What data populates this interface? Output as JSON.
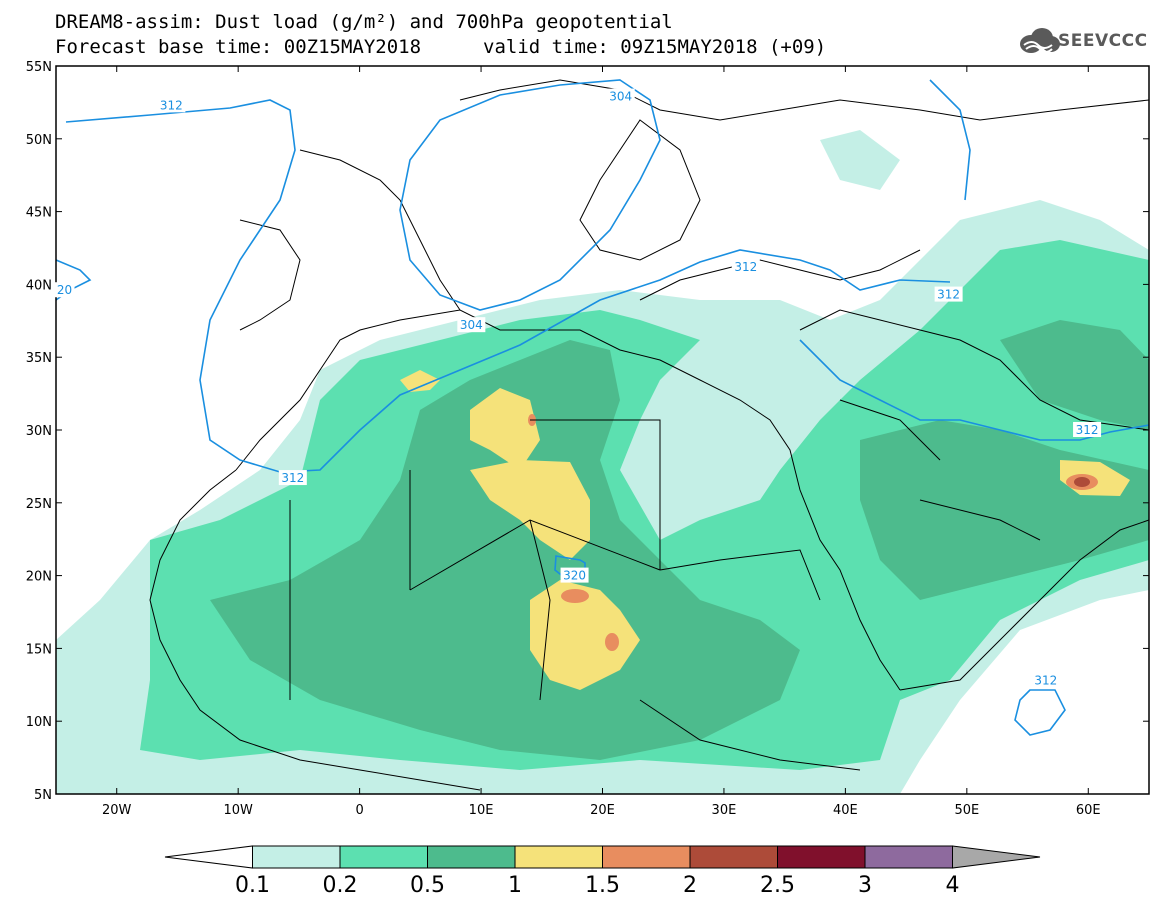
{
  "header": {
    "line1": "DREAM8-assim: Dust load (g/m²) and 700hPa geopotential",
    "line2_left": "Forecast base time: 00Z15MAY2018",
    "line2_right": "valid time: 09Z15MAY2018 (+09)",
    "logo_text": "SEEVCCC",
    "logo_icon": "cloud-logo-icon"
  },
  "chart_data": {
    "type": "map",
    "lat_ticks": [
      "55N",
      "50N",
      "45N",
      "40N",
      "35N",
      "30N",
      "25N",
      "20N",
      "15N",
      "10N",
      "5N"
    ],
    "lon_ticks": [
      "20W",
      "10W",
      "0",
      "10E",
      "20E",
      "30E",
      "40E",
      "50E",
      "60E"
    ],
    "lat_range": [
      5,
      55
    ],
    "lon_range": [
      -25,
      65
    ],
    "contours": [
      {
        "label": "312",
        "lon": -15.5,
        "lat": 52.3
      },
      {
        "label": "304",
        "lon": 21.5,
        "lat": 52.9
      },
      {
        "label": "20",
        "lon": -24.3,
        "lat": 39.6
      },
      {
        "label": "304",
        "lon": 9.2,
        "lat": 37.2
      },
      {
        "label": "312",
        "lon": 31.8,
        "lat": 41.2
      },
      {
        "label": "312",
        "lon": 48.5,
        "lat": 39.3
      },
      {
        "label": "312",
        "lon": -5.5,
        "lat": 26.7
      },
      {
        "label": "320",
        "lon": 17.7,
        "lat": 20.0
      },
      {
        "label": "312",
        "lon": 59.9,
        "lat": 30.0
      },
      {
        "label": "312",
        "lon": 56.5,
        "lat": 12.8
      }
    ],
    "colorbar": {
      "levels": [
        "0.1",
        "0.2",
        "0.5",
        "1",
        "1.5",
        "2",
        "2.5",
        "3",
        "4"
      ],
      "colors": [
        "#ffffff",
        "#c4efe6",
        "#5ce0b0",
        "#4dbb8d",
        "#f5e27a",
        "#e88d5f",
        "#ad4b39",
        "#80102c",
        "#8e6a9e",
        "#a8a8a8"
      ]
    },
    "palette": {
      "land_border": "#000000",
      "contour": "#1a8fe0",
      "ocean": "#ffffff"
    }
  }
}
